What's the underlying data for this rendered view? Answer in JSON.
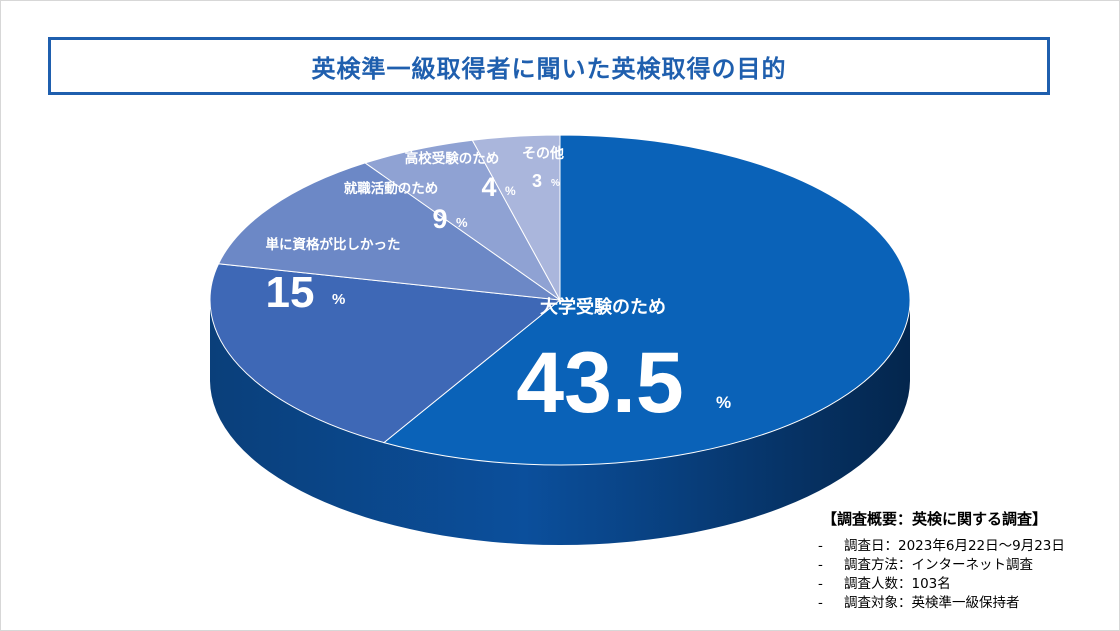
{
  "title": "英検準一級取得者に聞いた英検取得の目的",
  "chart_data": {
    "type": "pie",
    "title": "英検準一級取得者に聞いた英検取得の目的",
    "unit": "%",
    "slices": [
      {
        "label": "大学受験のため",
        "value": 43.5,
        "color": "#0a62b8"
      },
      {
        "label": "単に資格が比しかった",
        "value": 15,
        "color": "#3e68b6"
      },
      {
        "label": "就職活動のため",
        "value": 9,
        "color": "#6c88c6"
      },
      {
        "label": "高校受験のため",
        "value": 4,
        "color": "#8fa2d3"
      },
      {
        "label": "その他",
        "value": 3,
        "color": "#aab6dc"
      }
    ]
  },
  "survey": {
    "title": "【調査概要：英検に関する調査】",
    "rows": [
      {
        "dash": "-",
        "text": "調査日：2023年6月22日～9月23日"
      },
      {
        "dash": "-",
        "text": "調査方法：インターネット調査"
      },
      {
        "dash": "-",
        "text": "調査人数：103名"
      },
      {
        "dash": "-",
        "text": "調査対象：英検準一級保持者"
      }
    ]
  }
}
